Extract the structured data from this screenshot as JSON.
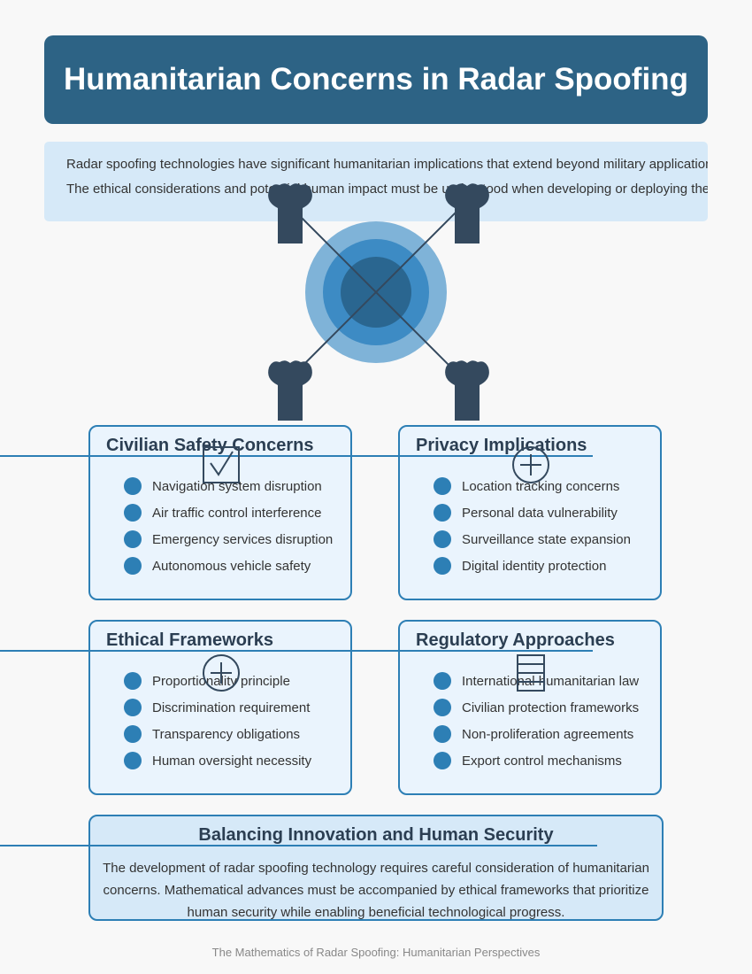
{
  "title": "Humanitarian Concerns in Radar Spoofing",
  "intro": {
    "line1": "Radar spoofing technologies have significant humanitarian implications that extend beyond military applications.",
    "line2": "The ethical considerations and potential human impact must be understood when developing or deploying these technologies."
  },
  "diagram": {
    "center_icon": "radar-target-icon",
    "corner_icons": [
      "tower-icon",
      "tower-icon",
      "tower-icon",
      "tower-icon"
    ]
  },
  "cards": [
    {
      "title": "Civilian Safety Concerns",
      "icon": "checkbox-icon",
      "items": [
        "Navigation system disruption",
        "Air traffic control interference",
        "Emergency services disruption",
        "Autonomous vehicle safety"
      ]
    },
    {
      "title": "Privacy Implications",
      "icon": "plus-circle-icon",
      "items": [
        "Location tracking concerns",
        "Personal data vulnerability",
        "Surveillance state expansion",
        "Digital identity protection"
      ]
    },
    {
      "title": "Ethical Frameworks",
      "icon": "plus-circle-icon",
      "items": [
        "Proportionality principle",
        "Discrimination requirement",
        "Transparency obligations",
        "Human oversight necessity"
      ]
    },
    {
      "title": "Regulatory Approaches",
      "icon": "list-icon",
      "items": [
        "International humanitarian law",
        "Civilian protection frameworks",
        "Non-proliferation agreements",
        "Export control mechanisms"
      ]
    }
  ],
  "balance": {
    "title": "Balancing Innovation and Human Security",
    "lines": [
      "The development of radar spoofing technology requires careful consideration of humanitarian",
      "concerns. Mathematical advances must be accompanied by ethical frameworks that prioritize",
      "human security while enabling beneficial technological progress."
    ]
  },
  "footer": "The Mathematics of Radar Spoofing: Humanitarian Perspectives",
  "colors": {
    "title_bg": "#2d6385",
    "accent": "#2d7fb5",
    "card_bg": "#eaf4fd",
    "dark": "#34495e",
    "ring_outer": "#7fb3d8",
    "ring_mid": "#3d8bc4",
    "ring_inner": "#2a6690"
  }
}
